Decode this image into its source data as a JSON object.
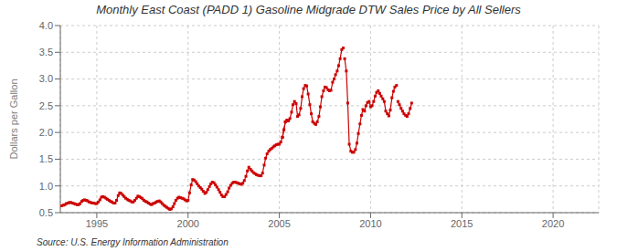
{
  "chart_data": {
    "type": "line",
    "title": "Monthly East Coast (PADD 1) Gasoline Midgrade DTW Sales Price by All Sellers",
    "y_label": "Dollars per Gallon",
    "annotation": "Source: U.S. Energy Information Administration",
    "xlim": [
      1993.0,
      2022.5
    ],
    "ylim": [
      0.5,
      4.0
    ],
    "xticks": [
      1995,
      2000,
      2005,
      2010,
      2015,
      2020
    ],
    "yticks": [
      0.5,
      {
        "value": 1.0,
        "label": "1.0"
      },
      1.5,
      {
        "value": 2.0,
        "label": "2.0"
      },
      2.5,
      {
        "value": 3.0,
        "label": "3.0"
      },
      3.5,
      {
        "value": 4.0,
        "label": "4.0"
      }
    ],
    "grid": true,
    "series": [
      {
        "color": "#cc0000",
        "marker": "square",
        "line_style": "solid",
        "x": [
          1993.08,
          1993.17,
          1993.25,
          1993.33,
          1993.42,
          1993.5,
          1993.58,
          1993.67,
          1993.75,
          1993.83,
          1993.92,
          1994.0,
          1994.08,
          1994.17,
          1994.25,
          1994.33,
          1994.42,
          1994.5,
          1994.58,
          1994.67,
          1994.75,
          1994.83,
          1994.92,
          1995.0,
          1995.08,
          1995.17,
          1995.25,
          1995.33,
          1995.42,
          1995.5,
          1995.58,
          1995.67,
          1995.75,
          1995.83,
          1995.92,
          1996.0,
          1996.08,
          1996.17,
          1996.25,
          1996.33,
          1996.42,
          1996.5,
          1996.58,
          1996.67,
          1996.75,
          1996.83,
          1996.92,
          1997.0,
          1997.08,
          1997.17,
          1997.25,
          1997.33,
          1997.42,
          1997.5,
          1997.58,
          1997.67,
          1997.75,
          1997.83,
          1997.92,
          1998.0,
          1998.08,
          1998.17,
          1998.25,
          1998.33,
          1998.42,
          1998.5,
          1998.58,
          1998.67,
          1998.75,
          1998.83,
          1998.92,
          1999.0,
          1999.08,
          1999.17,
          1999.25,
          1999.33,
          1999.42,
          1999.5,
          1999.58,
          1999.67,
          1999.75,
          1999.83,
          1999.92,
          2000.0,
          2000.08,
          2000.17,
          2000.25,
          2000.33,
          2000.42,
          2000.5,
          2000.58,
          2000.67,
          2000.75,
          2000.83,
          2000.92,
          2001.0,
          2001.08,
          2001.17,
          2001.25,
          2001.33,
          2001.42,
          2001.5,
          2001.58,
          2001.67,
          2001.75,
          2001.83,
          2001.92
        ],
        "values": [
          0.63,
          0.64,
          0.65,
          0.67,
          0.68,
          0.69,
          0.69,
          0.68,
          0.67,
          0.66,
          0.65,
          0.65,
          0.67,
          0.71,
          0.73,
          0.74,
          0.73,
          0.72,
          0.7,
          0.69,
          0.68,
          0.68,
          0.67,
          0.67,
          0.7,
          0.74,
          0.79,
          0.8,
          0.79,
          0.77,
          0.75,
          0.73,
          0.71,
          0.7,
          0.68,
          0.68,
          0.73,
          0.82,
          0.87,
          0.86,
          0.83,
          0.8,
          0.77,
          0.75,
          0.73,
          0.72,
          0.7,
          0.7,
          0.73,
          0.77,
          0.81,
          0.8,
          0.78,
          0.76,
          0.73,
          0.71,
          0.7,
          0.68,
          0.66,
          0.65,
          0.67,
          0.68,
          0.7,
          0.71,
          0.72,
          0.7,
          0.67,
          0.64,
          0.62,
          0.6,
          0.58,
          0.56,
          0.57,
          0.61,
          0.67,
          0.73,
          0.77,
          0.79,
          0.78,
          0.77,
          0.76,
          0.74,
          0.72,
          0.73,
          0.87,
          1.02,
          1.12,
          1.11,
          1.08,
          1.04,
          1.0,
          0.97,
          0.94,
          0.9,
          0.86,
          0.88,
          0.93,
          0.99,
          1.04,
          1.07,
          1.06,
          1.02,
          0.98,
          0.93,
          0.88,
          0.83,
          0.8
        ]
      },
      {
        "color": "#cc0000",
        "marker": "square",
        "line_style": "solid",
        "x": [
          2001.92,
          2002.0,
          2002.08,
          2002.17,
          2002.25,
          2002.33,
          2002.42,
          2002.5,
          2002.58,
          2002.67,
          2002.75,
          2002.83,
          2002.92,
          2003.0,
          2003.08,
          2003.17,
          2003.25,
          2003.33,
          2003.42,
          2003.5,
          2003.58,
          2003.67,
          2003.75,
          2003.83,
          2003.92,
          2004.0,
          2004.08,
          2004.17,
          2004.25,
          2004.33,
          2004.42,
          2004.5,
          2004.58,
          2004.67,
          2004.75,
          2004.83,
          2004.92,
          2005.0,
          2005.08,
          2005.17,
          2005.25,
          2005.33,
          2005.42,
          2005.5
        ],
        "values": [
          0.8,
          0.8,
          0.84,
          0.89,
          0.96,
          1.01,
          1.05,
          1.07,
          1.07,
          1.06,
          1.05,
          1.04,
          1.03,
          1.05,
          1.1,
          1.18,
          1.28,
          1.35,
          1.31,
          1.28,
          1.25,
          1.23,
          1.21,
          1.2,
          1.19,
          1.19,
          1.24,
          1.39,
          1.52,
          1.6,
          1.65,
          1.68,
          1.7,
          1.73,
          1.75,
          1.77,
          1.78,
          1.78,
          1.82,
          1.91,
          2.05,
          2.2,
          2.23,
          2.22
        ]
      },
      {
        "color": "#cc0000",
        "marker": "square",
        "line_style": "solid",
        "x": [
          2005.17,
          2005.25,
          2005.33,
          2005.42,
          2005.5,
          2005.58,
          2005.67,
          2005.75,
          2005.83,
          2005.92,
          2006.0,
          2006.08,
          2006.17,
          2006.25,
          2006.33,
          2006.42,
          2006.5,
          2006.58,
          2006.67,
          2006.75,
          2006.83,
          2006.92,
          2007.0,
          2007.08,
          2007.17,
          2007.25,
          2007.33,
          2007.42,
          2007.5,
          2007.58,
          2007.67,
          2007.75,
          2007.83,
          2007.92,
          2008.0,
          2008.08,
          2008.17,
          2008.25,
          2008.33,
          2008.42,
          2008.5
        ],
        "values": [
          1.91,
          2.05,
          2.2,
          2.23,
          2.22,
          2.26,
          2.38,
          2.52,
          2.58,
          2.54,
          2.3,
          2.33,
          2.45,
          2.67,
          2.82,
          2.88,
          2.87,
          2.72,
          2.52,
          2.35,
          2.2,
          2.17,
          2.15,
          2.2,
          2.3,
          2.48,
          2.67,
          2.78,
          2.85,
          2.84,
          2.8,
          2.78,
          2.79,
          2.94,
          3.0,
          3.08,
          3.15,
          3.25,
          3.38,
          3.55,
          3.58
        ]
      },
      {
        "color": "#cc0000",
        "marker": "square",
        "line_style": "solid",
        "x": [
          2008.58,
          2008.67,
          2008.75,
          2008.83,
          2008.92,
          2009.0,
          2009.08,
          2009.17,
          2009.25,
          2009.33,
          2009.42,
          2009.5,
          2009.58,
          2009.67,
          2009.75,
          2009.83,
          2009.92,
          2010.0,
          2010.08,
          2010.17,
          2010.25,
          2010.33,
          2010.42,
          2010.5,
          2010.58,
          2010.67,
          2010.75,
          2010.83,
          2010.92,
          2011.0,
          2011.08,
          2011.17,
          2011.25,
          2011.33,
          2011.42
        ],
        "values": [
          3.38,
          3.15,
          2.55,
          1.78,
          1.65,
          1.63,
          1.63,
          1.68,
          1.8,
          1.98,
          2.16,
          2.32,
          2.43,
          2.4,
          2.5,
          2.56,
          2.58,
          2.48,
          2.5,
          2.58,
          2.68,
          2.75,
          2.78,
          2.73,
          2.68,
          2.63,
          2.58,
          2.4,
          2.35,
          2.31,
          2.42,
          2.65,
          2.77,
          2.85,
          2.88
        ]
      },
      {
        "color": "#cc0000",
        "marker": "square",
        "line_style": "solid",
        "x": [
          2011.5,
          2011.58,
          2011.67,
          2011.75,
          2011.83,
          2011.92,
          2012.0,
          2012.08,
          2012.17,
          2012.25
        ],
        "values": [
          2.58,
          2.52,
          2.45,
          2.4,
          2.35,
          2.32,
          2.3,
          2.35,
          2.45,
          2.55
        ]
      }
    ]
  }
}
